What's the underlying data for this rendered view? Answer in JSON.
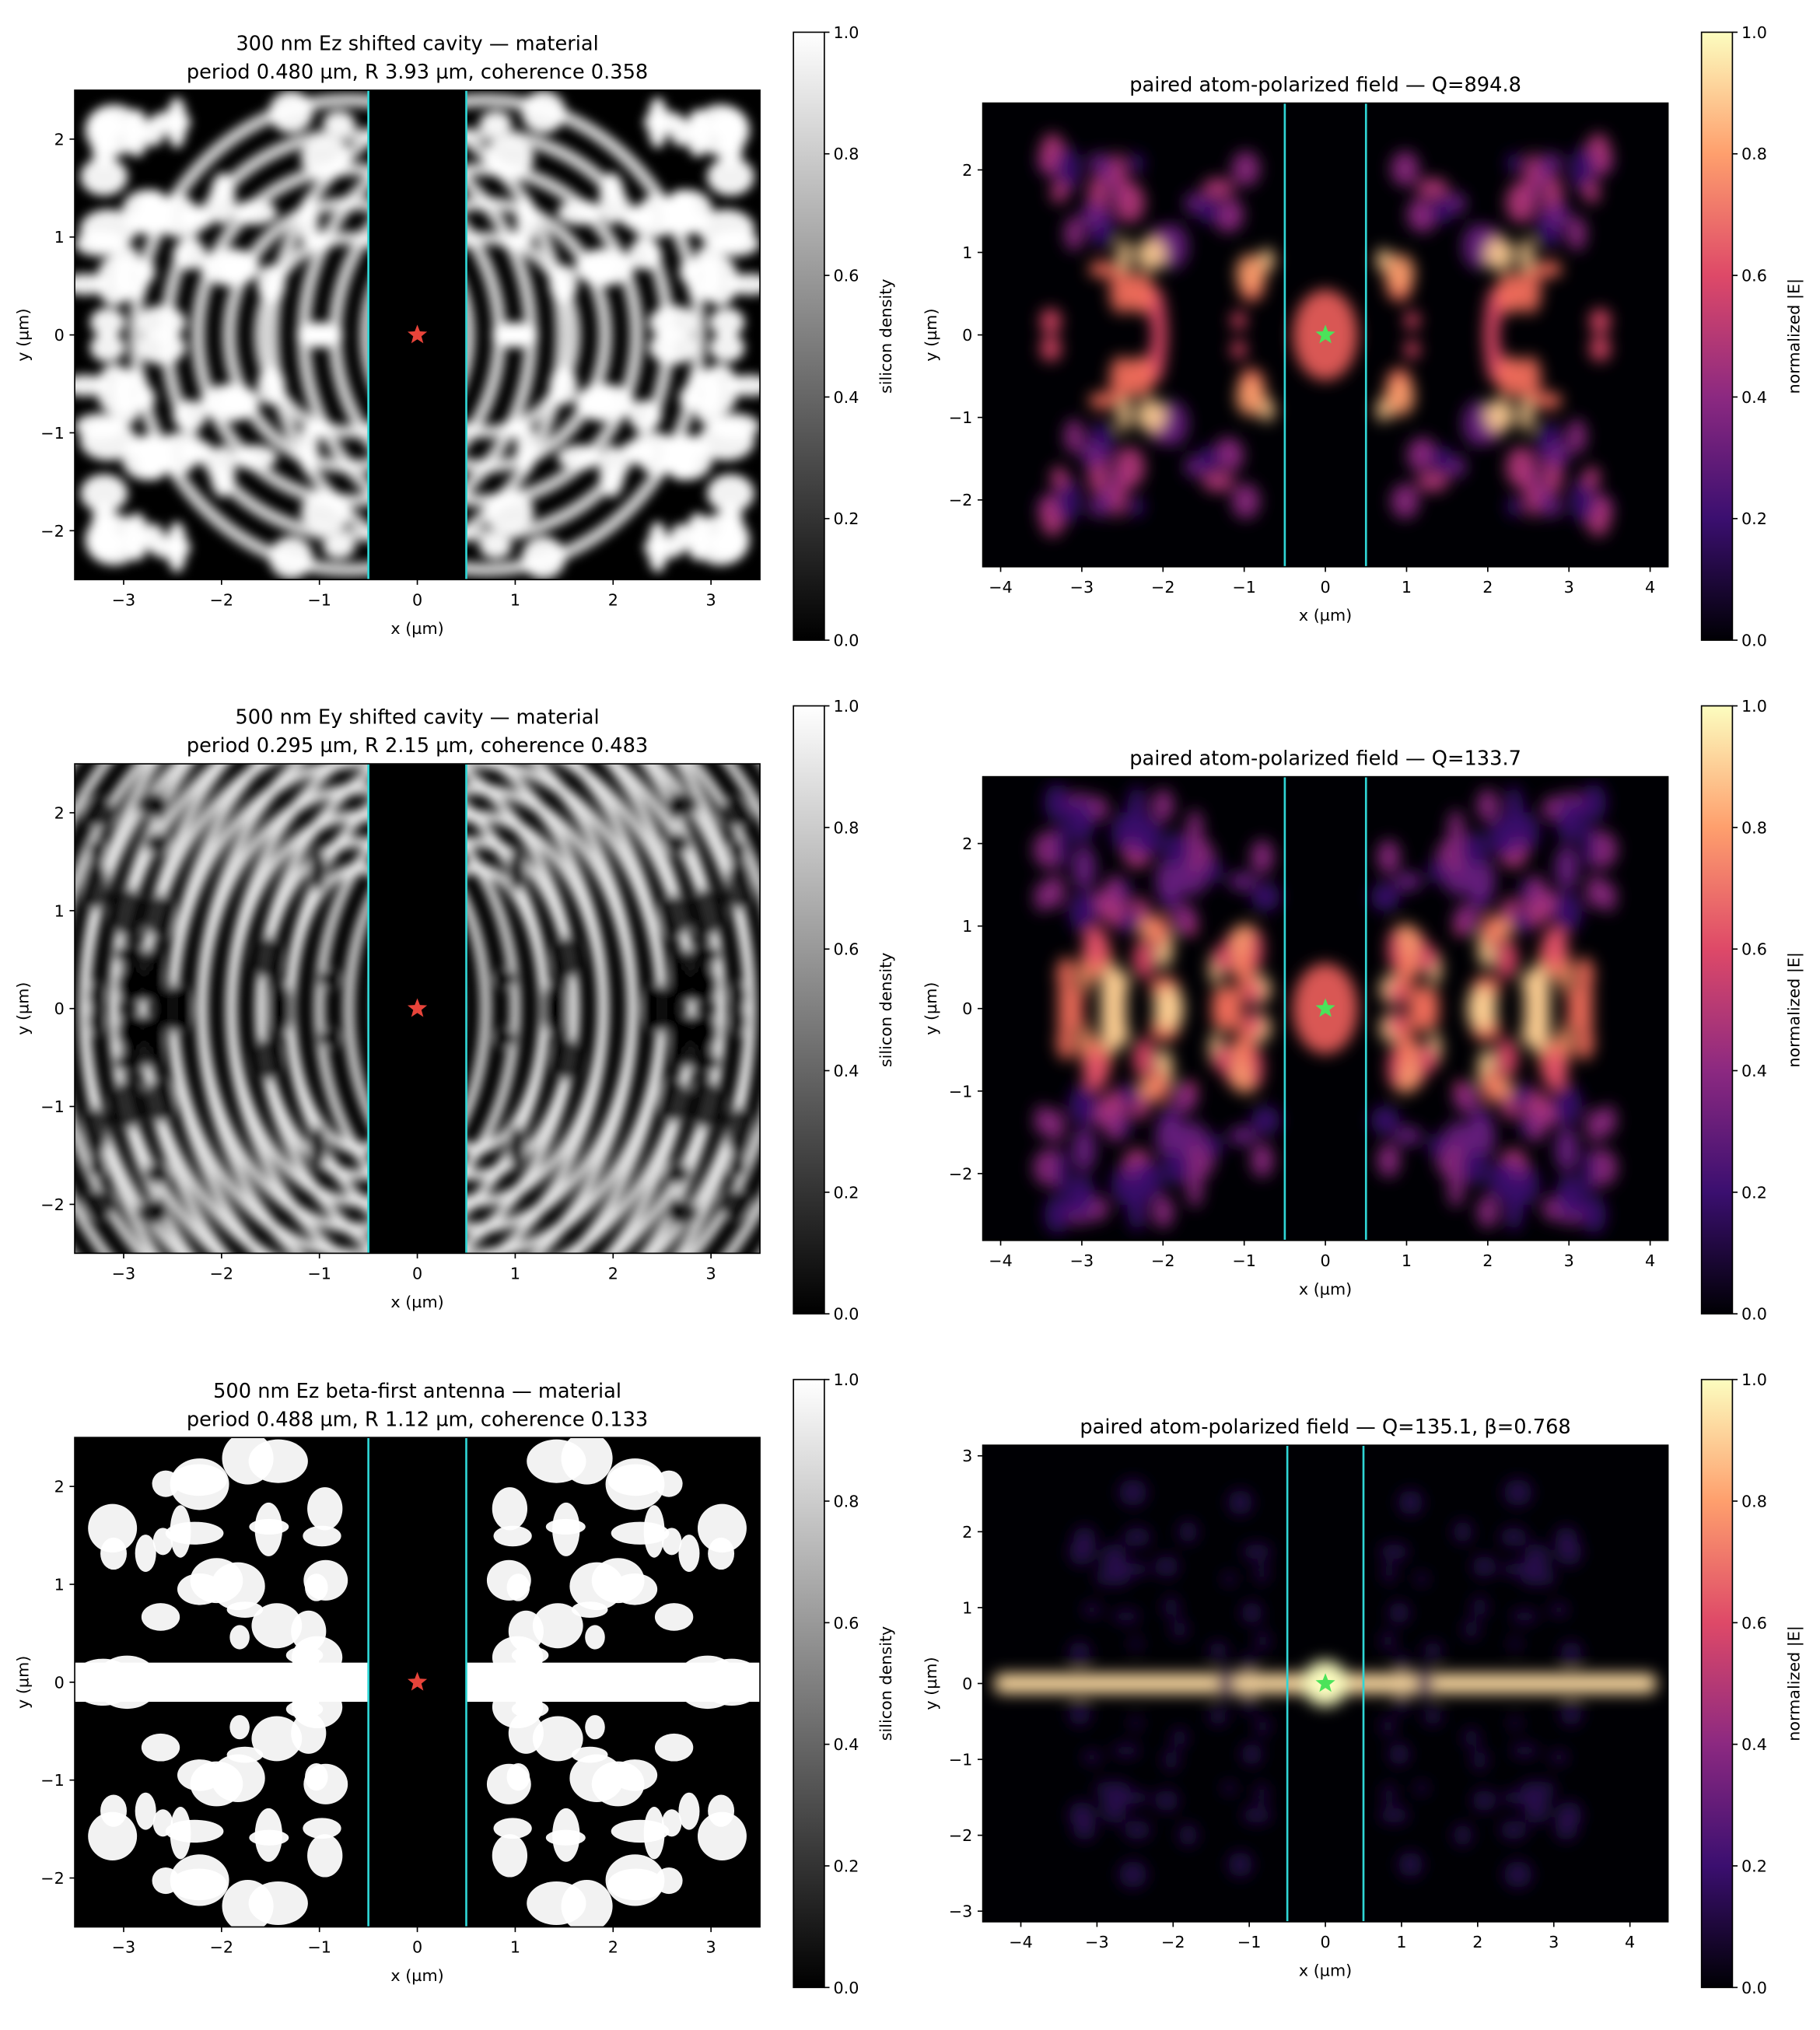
{
  "chart_data": [
    {
      "type": "heatmap",
      "colormap": "gray",
      "title": "300 nm Ez shifted cavity — material",
      "subtitle": "period 0.480 µm, R 3.93 µm, coherence 0.358",
      "xlabel": "x (µm)",
      "ylabel": "y (µm)",
      "xlim": [
        -3.5,
        3.5
      ],
      "ylim": [
        -2.5,
        2.5
      ],
      "xticks": [
        {
          "value": -3,
          "label": "−3"
        },
        {
          "value": -2,
          "label": "−2"
        },
        {
          "value": -1,
          "label": "−1"
        },
        0,
        1,
        2,
        3
      ],
      "yticks": [
        {
          "value": -2,
          "label": "−2"
        },
        {
          "value": -1,
          "label": "−1"
        },
        0,
        1,
        2
      ],
      "vlines": [
        -0.5,
        0.5
      ],
      "vline_color": "#2fd6d6",
      "marker": {
        "x": 0,
        "y": 0,
        "color": "#e8443a"
      },
      "colorbar": {
        "label": "silicon density",
        "lim": [
          0,
          1
        ],
        "ticks": [
          {
            "value": 0,
            "label": "0.0"
          },
          0.2,
          0.4,
          0.6,
          0.8,
          {
            "value": 1,
            "label": "1.0"
          }
        ]
      }
    },
    {
      "type": "heatmap",
      "colormap": "magma",
      "title": "paired atom-polarized field — Q=894.8",
      "xlabel": "x (µm)",
      "ylabel": "y (µm)",
      "xlim": [
        -4.22,
        4.22
      ],
      "ylim": [
        -2.81,
        2.81
      ],
      "xticks": [
        {
          "value": -4,
          "label": "−4"
        },
        {
          "value": -3,
          "label": "−3"
        },
        {
          "value": -2,
          "label": "−2"
        },
        {
          "value": -1,
          "label": "−1"
        },
        0,
        1,
        2,
        3,
        4
      ],
      "yticks": [
        {
          "value": -2,
          "label": "−2"
        },
        {
          "value": -1,
          "label": "−1"
        },
        0,
        1,
        2
      ],
      "vlines": [
        -0.5,
        0.5
      ],
      "vline_color": "#2fd6d6",
      "marker": {
        "x": 0,
        "y": 0,
        "color": "#4be35a"
      },
      "colorbar": {
        "label": "normalized |E|",
        "lim": [
          0,
          1
        ],
        "ticks": [
          {
            "value": 0,
            "label": "0.0"
          },
          0.2,
          0.4,
          0.6,
          0.8,
          {
            "value": 1,
            "label": "1.0"
          }
        ]
      }
    },
    {
      "type": "heatmap",
      "colormap": "gray",
      "title": "500 nm Ey shifted cavity — material",
      "subtitle": "period 0.295 µm, R 2.15 µm, coherence 0.483",
      "xlabel": "x (µm)",
      "ylabel": "y (µm)",
      "xlim": [
        -3.5,
        3.5
      ],
      "ylim": [
        -2.5,
        2.5
      ],
      "xticks": [
        {
          "value": -3,
          "label": "−3"
        },
        {
          "value": -2,
          "label": "−2"
        },
        {
          "value": -1,
          "label": "−1"
        },
        0,
        1,
        2,
        3
      ],
      "yticks": [
        {
          "value": -2,
          "label": "−2"
        },
        {
          "value": -1,
          "label": "−1"
        },
        0,
        1,
        2
      ],
      "vlines": [
        -0.5,
        0.5
      ],
      "vline_color": "#2fd6d6",
      "marker": {
        "x": 0,
        "y": 0,
        "color": "#e8443a"
      },
      "colorbar": {
        "label": "silicon density",
        "lim": [
          0,
          1
        ],
        "ticks": [
          {
            "value": 0,
            "label": "0.0"
          },
          0.2,
          0.4,
          0.6,
          0.8,
          {
            "value": 1,
            "label": "1.0"
          }
        ]
      }
    },
    {
      "type": "heatmap",
      "colormap": "magma",
      "title": "paired atom-polarized field — Q=133.7",
      "xlabel": "x (µm)",
      "ylabel": "y (µm)",
      "xlim": [
        -4.22,
        4.22
      ],
      "ylim": [
        -2.81,
        2.81
      ],
      "xticks": [
        {
          "value": -4,
          "label": "−4"
        },
        {
          "value": -3,
          "label": "−3"
        },
        {
          "value": -2,
          "label": "−2"
        },
        {
          "value": -1,
          "label": "−1"
        },
        0,
        1,
        2,
        3,
        4
      ],
      "yticks": [
        {
          "value": -2,
          "label": "−2"
        },
        {
          "value": -1,
          "label": "−1"
        },
        0,
        1,
        2
      ],
      "vlines": [
        -0.5,
        0.5
      ],
      "vline_color": "#2fd6d6",
      "marker": {
        "x": 0,
        "y": 0,
        "color": "#4be35a"
      },
      "colorbar": {
        "label": "normalized |E|",
        "lim": [
          0,
          1
        ],
        "ticks": [
          {
            "value": 0,
            "label": "0.0"
          },
          0.2,
          0.4,
          0.6,
          0.8,
          {
            "value": 1,
            "label": "1.0"
          }
        ]
      }
    },
    {
      "type": "heatmap",
      "colormap": "gray",
      "title": "500 nm Ez beta-first antenna — material",
      "subtitle": "period 0.488 µm, R 1.12 µm, coherence 0.133",
      "xlabel": "x (µm)",
      "ylabel": "y (µm)",
      "xlim": [
        -3.5,
        3.5
      ],
      "ylim": [
        -2.5,
        2.5
      ],
      "xticks": [
        {
          "value": -3,
          "label": "−3"
        },
        {
          "value": -2,
          "label": "−2"
        },
        {
          "value": -1,
          "label": "−1"
        },
        0,
        1,
        2,
        3
      ],
      "yticks": [
        {
          "value": -2,
          "label": "−2"
        },
        {
          "value": -1,
          "label": "−1"
        },
        0,
        1,
        2
      ],
      "vlines": [
        -0.5,
        0.5
      ],
      "vline_color": "#2fd6d6",
      "marker": {
        "x": 0,
        "y": 0,
        "color": "#e8443a"
      },
      "colorbar": {
        "label": "silicon density",
        "lim": [
          0,
          1
        ],
        "ticks": [
          {
            "value": 0,
            "label": "0.0"
          },
          0.2,
          0.4,
          0.6,
          0.8,
          {
            "value": 1,
            "label": "1.0"
          }
        ]
      }
    },
    {
      "type": "heatmap",
      "colormap": "magma",
      "title": "paired atom-polarized field — Q=135.1, β=0.768",
      "xlabel": "x (µm)",
      "ylabel": "y (µm)",
      "xlim": [
        -4.5,
        4.5
      ],
      "ylim": [
        -3.14,
        3.14
      ],
      "xticks": [
        {
          "value": -4,
          "label": "−4"
        },
        {
          "value": -3,
          "label": "−3"
        },
        {
          "value": -2,
          "label": "−2"
        },
        {
          "value": -1,
          "label": "−1"
        },
        0,
        1,
        2,
        3,
        4
      ],
      "yticks": [
        {
          "value": -3,
          "label": "−3"
        },
        {
          "value": -2,
          "label": "−2"
        },
        {
          "value": -1,
          "label": "−1"
        },
        0,
        1,
        2,
        3
      ],
      "vlines": [
        -0.5,
        0.5
      ],
      "vline_color": "#2fd6d6",
      "marker": {
        "x": 0,
        "y": 0,
        "color": "#4be35a"
      },
      "colorbar": {
        "label": "normalized |E|",
        "lim": [
          0,
          1
        ],
        "ticks": [
          {
            "value": 0,
            "label": "0.0"
          },
          0.2,
          0.4,
          0.6,
          0.8,
          {
            "value": 1,
            "label": "1.0"
          }
        ]
      }
    }
  ]
}
